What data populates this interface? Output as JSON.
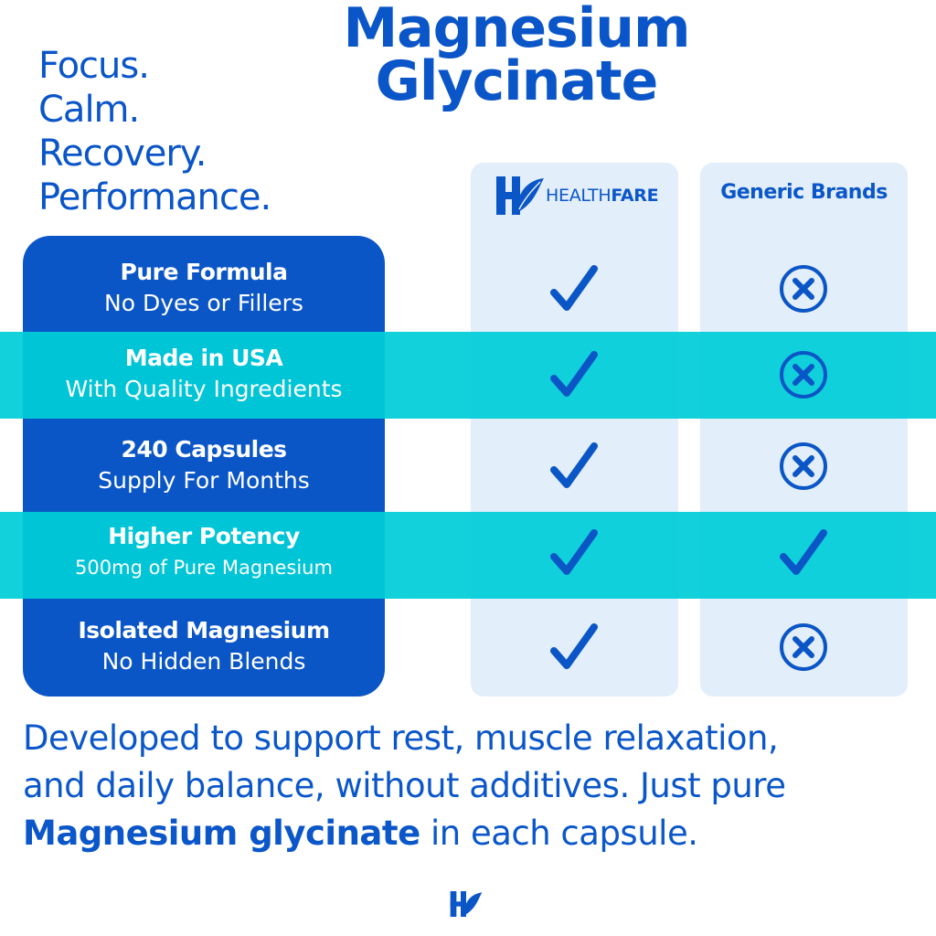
{
  "title": [
    "Magnesium",
    "Glycinate"
  ],
  "tagline": [
    "Focus.",
    "Calm.",
    "Recovery.",
    "Performance."
  ],
  "columns": {
    "brand_prefix": "HEALTH",
    "brand_suffix": "FARE",
    "generic": "Generic Brands"
  },
  "features": [
    {
      "title": "Pure Formula",
      "subtitle": "No Dyes or Fillers",
      "healthfare": "check",
      "generic": "x"
    },
    {
      "title": "Made in USA",
      "subtitle": "With Quality Ingredients",
      "healthfare": "check",
      "generic": "x"
    },
    {
      "title": "240 Capsules",
      "subtitle": "Supply For Months",
      "healthfare": "check",
      "generic": "x"
    },
    {
      "title": "Higher Potency",
      "subtitle": "500mg of Pure Magnesium",
      "healthfare": "check",
      "generic": "check"
    },
    {
      "title": "Isolated Magnesium",
      "subtitle": "No Hidden Blends",
      "healthfare": "check",
      "generic": "x"
    }
  ],
  "body": {
    "line1": "Developed to support rest, muscle relaxation,",
    "line2": "and daily balance, without additives. Just pure",
    "bold": "Magnesium glycinate",
    "rest": " in each capsule."
  },
  "colors": {
    "primary": "#0b56c6",
    "accent": "#00cdd8",
    "panel": "#e2eefa"
  }
}
